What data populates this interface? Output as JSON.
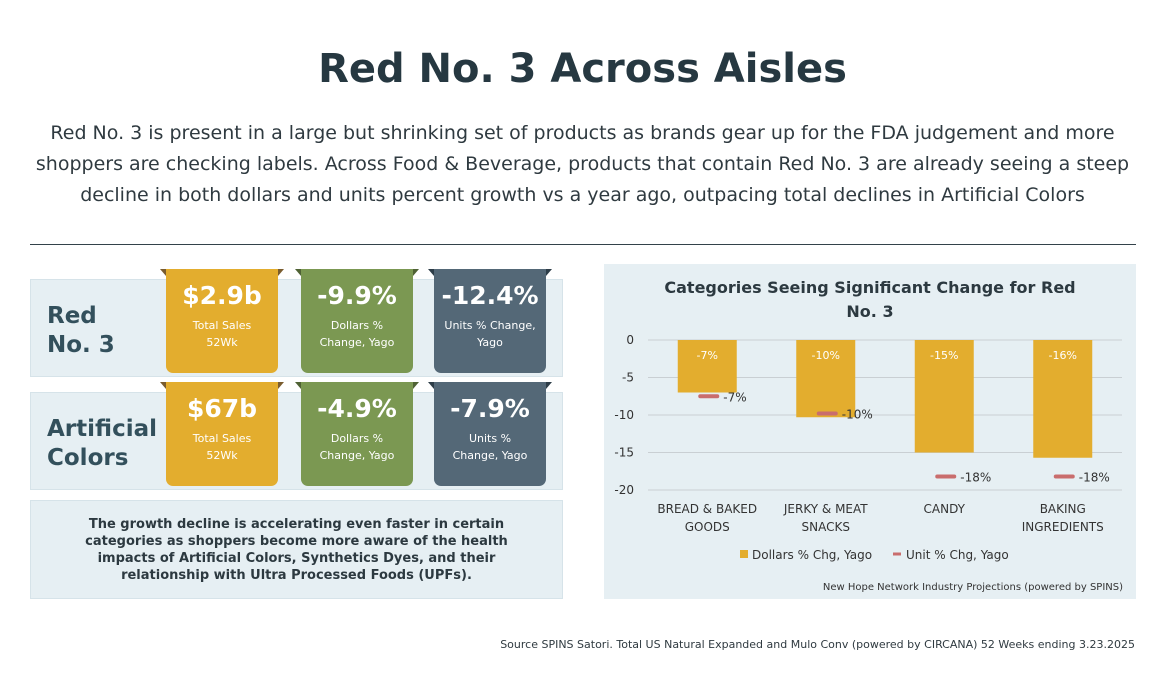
{
  "title": "Red No. 3 Across Aisles",
  "intro": "Red No. 3 is present in a large but shrinking set of products as brands gear up for the FDA judgement and more shoppers are checking labels. Across Food & Beverage, products that contain Red No. 3 are already seeing a steep decline in both dollars and units percent growth vs a year ago, outpacing total declines in Artificial Colors",
  "rows": [
    {
      "label_line1": "Red",
      "label_line2": "No. 3",
      "tiles": [
        {
          "value": "$2.9b",
          "label_line1": "Total Sales",
          "label_line2": "52Wk"
        },
        {
          "value": "-9.9%",
          "label_line1": "Dollars %",
          "label_line2": "Change, Yago"
        },
        {
          "value": "-12.4%",
          "label_line1": "Units % Change,",
          "label_line2": "Yago"
        }
      ]
    },
    {
      "label_line1": "Artificial",
      "label_line2": "Colors",
      "tiles": [
        {
          "value": "$67b",
          "label_line1": "Total Sales",
          "label_line2": "52Wk"
        },
        {
          "value": "-4.9%",
          "label_line1": "Dollars %",
          "label_line2": "Change, Yago"
        },
        {
          "value": "-7.9%",
          "label_line1": "Units %",
          "label_line2": "Change, Yago"
        }
      ]
    }
  ],
  "note": "The growth decline is accelerating even faster in certain categories as shoppers become more aware of the health impacts of Artificial Colors, Synthetics Dyes, and their relationship with Ultra Processed Foods (UPFs).",
  "chart_data": {
    "type": "bar",
    "title_line1": "Categories Seeing Significant Change for Red",
    "title_line2": "No. 3",
    "categories": [
      [
        "BREAD & BAKED",
        "GOODS"
      ],
      [
        "JERKY & MEAT",
        "SNACKS"
      ],
      [
        "CANDY"
      ],
      [
        "BAKING",
        "INGREDIENTS"
      ]
    ],
    "series": [
      {
        "name": "Dollars % Chg, Yago",
        "type": "bar",
        "values": [
          -7,
          -10.3,
          -15,
          -15.7
        ],
        "labels": [
          "-7%",
          "-10%",
          "-15%",
          "-16%"
        ],
        "color": "#e3ad2e"
      },
      {
        "name": "Unit % Chg, Yago",
        "type": "marker",
        "values": [
          -7.5,
          -9.8,
          -18.2,
          -18.2
        ],
        "labels": [
          "-7%",
          "-10%",
          "-18%",
          "-18%"
        ],
        "color": "#c96d6d"
      }
    ],
    "yticks": [
      0,
      -5,
      -10,
      -15,
      -20
    ],
    "ylim": [
      -20,
      0
    ],
    "grid": true,
    "legend": "bottom",
    "footnote": "New Hope Network Industry Projections (powered by SPINS)"
  },
  "source": "Source SPINS Satori. Total US Natural Expanded and Mulo Conv (powered by CIRCANA) 52 Weeks ending 3.23.2025"
}
